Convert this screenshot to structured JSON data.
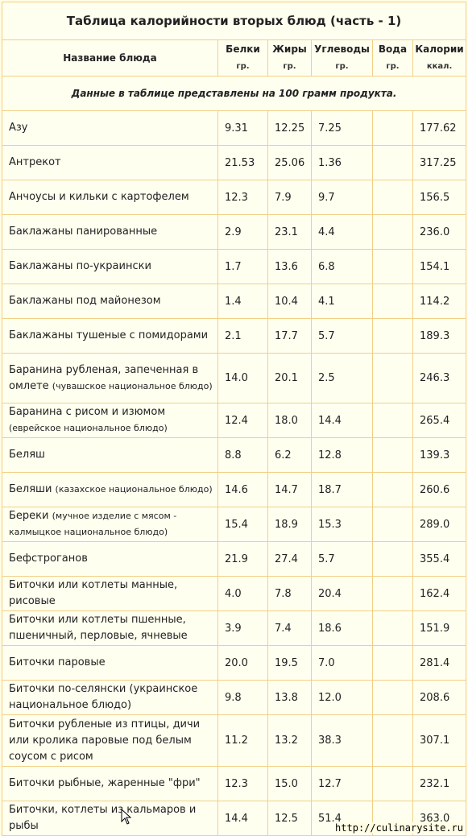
{
  "title": "Таблица калорийности вторых блюд (часть - 1)",
  "headers": {
    "name": "Название блюда",
    "protein": {
      "label": "Белки",
      "unit": "гр."
    },
    "fat": {
      "label": "Жиры",
      "unit": "гр."
    },
    "carbs": {
      "label": "Углеводы",
      "unit": "гр."
    },
    "water": {
      "label": "Вода",
      "unit": "гр."
    },
    "calories": {
      "label": "Калории",
      "unit": "ккал."
    }
  },
  "note": "Данные в таблице представлены на 100 грамм продукта.",
  "rows": [
    {
      "name": "Азу",
      "sub": "",
      "protein": "9.31",
      "fat": "12.25",
      "carbs": "7.25",
      "water": "",
      "kcal": "177.62"
    },
    {
      "name": "Антрекот",
      "sub": "",
      "protein": "21.53",
      "fat": "25.06",
      "carbs": "1.36",
      "water": "",
      "kcal": "317.25"
    },
    {
      "name": "Анчоусы и кильки с картофелем",
      "sub": "",
      "protein": "12.3",
      "fat": "7.9",
      "carbs": "9.7",
      "water": "",
      "kcal": "156.5"
    },
    {
      "name": "Баклажаны панированные",
      "sub": "",
      "protein": "2.9",
      "fat": "23.1",
      "carbs": "4.4",
      "water": "",
      "kcal": "236.0"
    },
    {
      "name": "Баклажаны по-украински",
      "sub": "",
      "protein": "1.7",
      "fat": "13.6",
      "carbs": "6.8",
      "water": "",
      "kcal": "154.1"
    },
    {
      "name": "Баклажаны под майонезом",
      "sub": "",
      "protein": "1.4",
      "fat": "10.4",
      "carbs": "4.1",
      "water": "",
      "kcal": "114.2"
    },
    {
      "name": "Баклажаны тушеные с помидорами",
      "sub": "",
      "protein": "2.1",
      "fat": "17.7",
      "carbs": "5.7",
      "water": "",
      "kcal": "189.3"
    },
    {
      "name": "Баранина рубленая, запеченная в омлете",
      "sub": "(чувашское национальное блюдо)",
      "protein": "14.0",
      "fat": "20.1",
      "carbs": "2.5",
      "water": "",
      "kcal": "246.3"
    },
    {
      "name": "Баранина с рисом и изюмом",
      "sub": "(еврейское национальное блюдо)",
      "protein": "12.4",
      "fat": "18.0",
      "carbs": "14.4",
      "water": "",
      "kcal": "265.4"
    },
    {
      "name": "Беляш",
      "sub": "",
      "protein": "8.8",
      "fat": "6.2",
      "carbs": "12.8",
      "water": "",
      "kcal": "139.3"
    },
    {
      "name": "Беляши",
      "sub": "(казахское национальное блюдо)",
      "protein": "14.6",
      "fat": "14.7",
      "carbs": "18.7",
      "water": "",
      "kcal": "260.6"
    },
    {
      "name": "Береки",
      "sub": "(мучное изделие с мясом - калмыцкое национальное блюдо)",
      "protein": "15.4",
      "fat": "18.9",
      "carbs": "15.3",
      "water": "",
      "kcal": "289.0"
    },
    {
      "name": "Бефстроганов",
      "sub": "",
      "protein": "21.9",
      "fat": "27.4",
      "carbs": "5.7",
      "water": "",
      "kcal": "355.4"
    },
    {
      "name": "Биточки или котлеты манные, рисовые",
      "sub": "",
      "protein": "4.0",
      "fat": "7.8",
      "carbs": "20.4",
      "water": "",
      "kcal": "162.4"
    },
    {
      "name": "Биточки или котлеты пшенные, пшеничный, перловые, ячневые",
      "sub": "",
      "protein": "3.9",
      "fat": "7.4",
      "carbs": "18.6",
      "water": "",
      "kcal": "151.9"
    },
    {
      "name": "Биточки паровые",
      "sub": "",
      "protein": "20.0",
      "fat": "19.5",
      "carbs": "7.0",
      "water": "",
      "kcal": "281.4"
    },
    {
      "name": "Биточки по-селянски (украинское национальное блюдо)",
      "sub": "",
      "protein": "9.8",
      "fat": "13.8",
      "carbs": "12.0",
      "water": "",
      "kcal": "208.6"
    },
    {
      "name": "Биточки рубленые из птицы, дичи или кролика паровые под белым соусом с рисом",
      "sub": "",
      "protein": "11.2",
      "fat": "13.2",
      "carbs": "38.3",
      "water": "",
      "kcal": "307.1"
    },
    {
      "name": "Биточки рыбные, жаренные \"фри\"",
      "sub": "",
      "protein": "12.3",
      "fat": "15.0",
      "carbs": "12.7",
      "water": "",
      "kcal": "232.1"
    },
    {
      "name": "Биточки, котлеты из кальмаров и рыбы",
      "sub": "",
      "protein": "14.4",
      "fat": "12.5",
      "carbs": "51.4",
      "water": "",
      "kcal": "363.0"
    }
  ],
  "footer_link": "http://culinarysite.ru",
  "colors": {
    "background": "#fffde3",
    "border": "#f2cf86"
  }
}
